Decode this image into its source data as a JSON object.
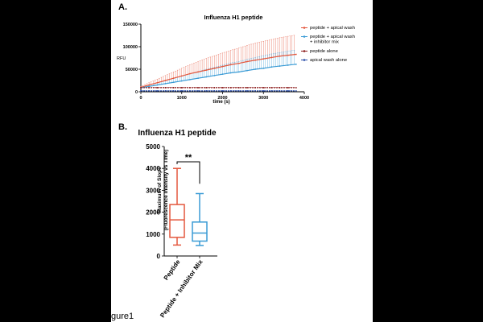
{
  "figure_label": "gure1",
  "chart_data": [
    {
      "panel_label": "A.",
      "type": "line",
      "title": "Influenza H1 peptide",
      "xlabel": "time (s)",
      "ylabel": "RFU",
      "xlim": [
        0,
        4000
      ],
      "ylim": [
        0,
        150000
      ],
      "xticks": [
        0,
        1000,
        2000,
        3000,
        4000
      ],
      "yticks": [
        0,
        50000,
        100000,
        150000
      ],
      "xtick_labels": [
        "0",
        "1000",
        "2000",
        "3000",
        "4000"
      ],
      "ytick_labels": [
        "0",
        "50000",
        "100000",
        "150000"
      ],
      "x": [
        0,
        200,
        400,
        600,
        800,
        1000,
        1200,
        1400,
        1600,
        1800,
        2000,
        2200,
        2400,
        2600,
        2800,
        3000,
        3200,
        3400,
        3600,
        3800
      ],
      "series": [
        {
          "name": "peptide + apical wash",
          "color": "#e4573d",
          "values": [
            10000,
            15000,
            20000,
            25000,
            30000,
            35000,
            40000,
            44000,
            48000,
            52000,
            56000,
            60000,
            63000,
            67000,
            70000,
            73000,
            76000,
            79000,
            81000,
            83000
          ],
          "error": [
            2000,
            5000,
            8000,
            11000,
            14000,
            17000,
            20000,
            23000,
            26000,
            28000,
            30000,
            32000,
            34000,
            36000,
            38000,
            39000,
            40000,
            41000,
            42000,
            43000
          ]
        },
        {
          "name": "peptide + apical wash\n+ inhibitor mix",
          "color": "#3a9bd5",
          "values": [
            9000,
            12000,
            15000,
            18000,
            21000,
            24000,
            27000,
            30000,
            33000,
            36000,
            39000,
            42000,
            44000,
            47000,
            50000,
            52000,
            55000,
            57000,
            59000,
            61000
          ],
          "error": [
            1000,
            3000,
            5000,
            7000,
            9000,
            11000,
            13000,
            15000,
            17000,
            18000,
            20000,
            22000,
            23000,
            25000,
            26000,
            28000,
            29000,
            30000,
            31000,
            32000
          ]
        },
        {
          "name": "peptide alone",
          "color": "#8b1a1a",
          "values": [
            9000,
            9000,
            9000,
            9000,
            9000,
            9000,
            9000,
            9000,
            9000,
            9000,
            9000,
            9000,
            9000,
            9000,
            9000,
            9000,
            9000,
            9000,
            9000,
            9000
          ],
          "error": [
            1000,
            1000,
            1000,
            1000,
            1000,
            1000,
            1000,
            1000,
            1000,
            1000,
            1000,
            1000,
            1000,
            1000,
            1000,
            1000,
            1000,
            1000,
            1000,
            1000
          ]
        },
        {
          "name": "apical wash alone",
          "color": "#2a4ea8",
          "values": [
            2000,
            2000,
            2000,
            2000,
            2000,
            2000,
            2000,
            2000,
            2000,
            2000,
            2000,
            2000,
            2000,
            2000,
            2000,
            2000,
            2000,
            2000,
            2000,
            2000
          ],
          "error": [
            500,
            500,
            500,
            500,
            500,
            500,
            500,
            500,
            500,
            500,
            500,
            500,
            500,
            500,
            500,
            500,
            500,
            500,
            500,
            500
          ]
        }
      ],
      "legend_placement": "right",
      "grid": false
    },
    {
      "panel_label": "B.",
      "type": "box",
      "title": "Influenza H1 peptide",
      "ylabel": "Maximum of Slope\n(Fluorescence Intensity vs Time)",
      "ylim": [
        0,
        5000
      ],
      "yticks": [
        0,
        1000,
        2000,
        3000,
        4000,
        5000
      ],
      "ytick_labels": [
        "0",
        "1000",
        "2000",
        "3000",
        "4000",
        "5000"
      ],
      "categories": [
        "Peptide",
        "Peptide + Inhibitor Mix"
      ],
      "boxes": [
        {
          "category": "Peptide",
          "color": "#e4573d",
          "min": 500,
          "q1": 850,
          "median": 1650,
          "q3": 2350,
          "max": 4000
        },
        {
          "category": "Peptide + Inhibitor Mix",
          "color": "#3a9bd5",
          "min": 480,
          "q1": 680,
          "median": 1050,
          "q3": 1550,
          "max": 2850
        }
      ],
      "significance": "**",
      "grid": false
    }
  ]
}
